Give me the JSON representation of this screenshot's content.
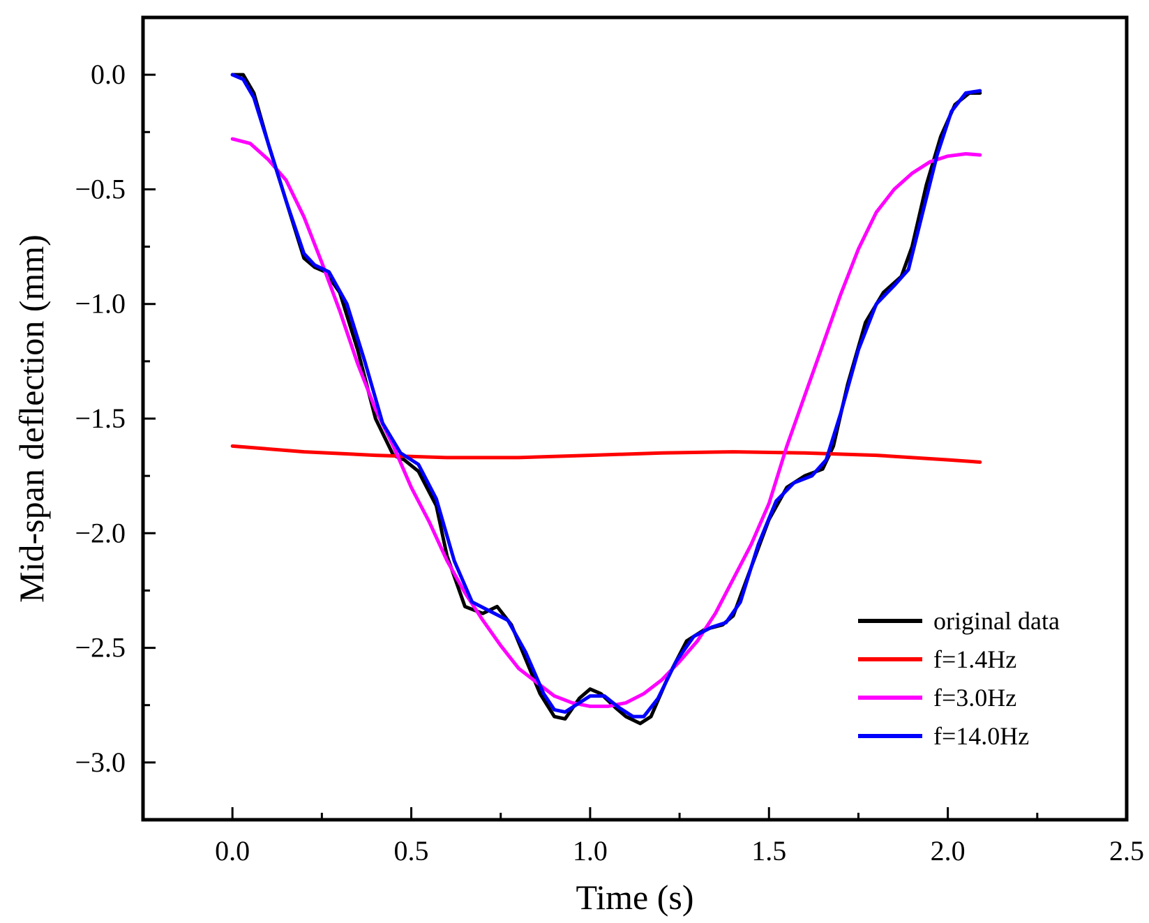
{
  "chart_data": {
    "type": "line",
    "title": "",
    "xlabel": "Time (s)",
    "ylabel": "Mid-span deflection (mm)",
    "xlim": [
      -0.25,
      2.5
    ],
    "ylim": [
      -3.25,
      0.25
    ],
    "xticks": [
      0.0,
      0.5,
      1.0,
      1.5,
      2.0,
      2.5
    ],
    "xtick_labels": [
      "0.0",
      "0.5",
      "1.0",
      "1.5",
      "2.0",
      "2.5"
    ],
    "yticks": [
      0.0,
      -0.5,
      -1.0,
      -1.5,
      -2.0,
      -2.5,
      -3.0
    ],
    "ytick_labels": [
      "0.0",
      "−0.5",
      "−1.0",
      "−1.5",
      "−2.0",
      "−2.5",
      "−3.0"
    ],
    "grid": false,
    "legend_position": "bottom-right",
    "series": [
      {
        "name": "original data",
        "color": "#000000",
        "points": [
          [
            0.0,
            0.0
          ],
          [
            0.03,
            0.0
          ],
          [
            0.06,
            -0.08
          ],
          [
            0.1,
            -0.3
          ],
          [
            0.15,
            -0.55
          ],
          [
            0.2,
            -0.8
          ],
          [
            0.23,
            -0.84
          ],
          [
            0.26,
            -0.86
          ],
          [
            0.3,
            -0.95
          ],
          [
            0.35,
            -1.2
          ],
          [
            0.4,
            -1.5
          ],
          [
            0.45,
            -1.66
          ],
          [
            0.48,
            -1.68
          ],
          [
            0.52,
            -1.73
          ],
          [
            0.57,
            -1.88
          ],
          [
            0.6,
            -2.1
          ],
          [
            0.65,
            -2.32
          ],
          [
            0.7,
            -2.35
          ],
          [
            0.74,
            -2.32
          ],
          [
            0.78,
            -2.4
          ],
          [
            0.82,
            -2.55
          ],
          [
            0.86,
            -2.7
          ],
          [
            0.9,
            -2.8
          ],
          [
            0.93,
            -2.81
          ],
          [
            0.97,
            -2.72
          ],
          [
            1.0,
            -2.68
          ],
          [
            1.03,
            -2.7
          ],
          [
            1.07,
            -2.76
          ],
          [
            1.1,
            -2.8
          ],
          [
            1.14,
            -2.83
          ],
          [
            1.17,
            -2.8
          ],
          [
            1.22,
            -2.62
          ],
          [
            1.27,
            -2.47
          ],
          [
            1.32,
            -2.42
          ],
          [
            1.37,
            -2.4
          ],
          [
            1.4,
            -2.36
          ],
          [
            1.45,
            -2.15
          ],
          [
            1.5,
            -1.94
          ],
          [
            1.55,
            -1.8
          ],
          [
            1.6,
            -1.75
          ],
          [
            1.65,
            -1.72
          ],
          [
            1.68,
            -1.62
          ],
          [
            1.72,
            -1.35
          ],
          [
            1.77,
            -1.08
          ],
          [
            1.82,
            -0.95
          ],
          [
            1.87,
            -0.88
          ],
          [
            1.9,
            -0.75
          ],
          [
            1.94,
            -0.48
          ],
          [
            1.98,
            -0.27
          ],
          [
            2.02,
            -0.13
          ],
          [
            2.06,
            -0.08
          ],
          [
            2.09,
            -0.08
          ]
        ]
      },
      {
        "name": "f=1.4Hz",
        "color": "#ff0000",
        "points": [
          [
            0.0,
            -1.62
          ],
          [
            0.2,
            -1.645
          ],
          [
            0.4,
            -1.66
          ],
          [
            0.6,
            -1.67
          ],
          [
            0.8,
            -1.67
          ],
          [
            1.0,
            -1.66
          ],
          [
            1.2,
            -1.65
          ],
          [
            1.4,
            -1.645
          ],
          [
            1.6,
            -1.65
          ],
          [
            1.8,
            -1.66
          ],
          [
            2.0,
            -1.68
          ],
          [
            2.09,
            -1.69
          ]
        ]
      },
      {
        "name": "f=3.0Hz",
        "color": "#ff00ff",
        "points": [
          [
            0.0,
            -0.28
          ],
          [
            0.05,
            -0.3
          ],
          [
            0.1,
            -0.37
          ],
          [
            0.15,
            -0.46
          ],
          [
            0.2,
            -0.62
          ],
          [
            0.25,
            -0.82
          ],
          [
            0.3,
            -1.03
          ],
          [
            0.35,
            -1.26
          ],
          [
            0.4,
            -1.46
          ],
          [
            0.45,
            -1.62
          ],
          [
            0.5,
            -1.8
          ],
          [
            0.55,
            -1.95
          ],
          [
            0.6,
            -2.12
          ],
          [
            0.65,
            -2.26
          ],
          [
            0.7,
            -2.38
          ],
          [
            0.75,
            -2.49
          ],
          [
            0.8,
            -2.59
          ],
          [
            0.85,
            -2.65
          ],
          [
            0.9,
            -2.71
          ],
          [
            0.95,
            -2.74
          ],
          [
            1.0,
            -2.755
          ],
          [
            1.05,
            -2.755
          ],
          [
            1.1,
            -2.74
          ],
          [
            1.15,
            -2.7
          ],
          [
            1.2,
            -2.64
          ],
          [
            1.25,
            -2.56
          ],
          [
            1.3,
            -2.47
          ],
          [
            1.35,
            -2.35
          ],
          [
            1.4,
            -2.2
          ],
          [
            1.45,
            -2.05
          ],
          [
            1.5,
            -1.87
          ],
          [
            1.55,
            -1.62
          ],
          [
            1.6,
            -1.4
          ],
          [
            1.65,
            -1.18
          ],
          [
            1.7,
            -0.96
          ],
          [
            1.75,
            -0.76
          ],
          [
            1.8,
            -0.6
          ],
          [
            1.85,
            -0.5
          ],
          [
            1.9,
            -0.43
          ],
          [
            1.95,
            -0.38
          ],
          [
            2.0,
            -0.355
          ],
          [
            2.05,
            -0.345
          ],
          [
            2.09,
            -0.35
          ]
        ]
      },
      {
        "name": "f=14.0Hz",
        "color": "#0000ff",
        "points": [
          [
            0.0,
            0.0
          ],
          [
            0.03,
            -0.02
          ],
          [
            0.06,
            -0.1
          ],
          [
            0.1,
            -0.3
          ],
          [
            0.15,
            -0.55
          ],
          [
            0.2,
            -0.78
          ],
          [
            0.23,
            -0.83
          ],
          [
            0.27,
            -0.86
          ],
          [
            0.32,
            -1.0
          ],
          [
            0.37,
            -1.25
          ],
          [
            0.42,
            -1.52
          ],
          [
            0.47,
            -1.65
          ],
          [
            0.52,
            -1.7
          ],
          [
            0.57,
            -1.85
          ],
          [
            0.62,
            -2.12
          ],
          [
            0.67,
            -2.3
          ],
          [
            0.72,
            -2.34
          ],
          [
            0.77,
            -2.38
          ],
          [
            0.82,
            -2.52
          ],
          [
            0.87,
            -2.7
          ],
          [
            0.9,
            -2.77
          ],
          [
            0.93,
            -2.78
          ],
          [
            0.97,
            -2.74
          ],
          [
            1.0,
            -2.71
          ],
          [
            1.04,
            -2.71
          ],
          [
            1.08,
            -2.76
          ],
          [
            1.12,
            -2.8
          ],
          [
            1.15,
            -2.8
          ],
          [
            1.19,
            -2.72
          ],
          [
            1.24,
            -2.56
          ],
          [
            1.29,
            -2.45
          ],
          [
            1.34,
            -2.41
          ],
          [
            1.38,
            -2.39
          ],
          [
            1.42,
            -2.3
          ],
          [
            1.47,
            -2.05
          ],
          [
            1.52,
            -1.86
          ],
          [
            1.57,
            -1.78
          ],
          [
            1.62,
            -1.75
          ],
          [
            1.66,
            -1.68
          ],
          [
            1.7,
            -1.48
          ],
          [
            1.75,
            -1.2
          ],
          [
            1.8,
            -1.0
          ],
          [
            1.85,
            -0.92
          ],
          [
            1.89,
            -0.85
          ],
          [
            1.93,
            -0.6
          ],
          [
            1.97,
            -0.35
          ],
          [
            2.01,
            -0.16
          ],
          [
            2.05,
            -0.08
          ],
          [
            2.09,
            -0.07
          ]
        ]
      }
    ]
  }
}
